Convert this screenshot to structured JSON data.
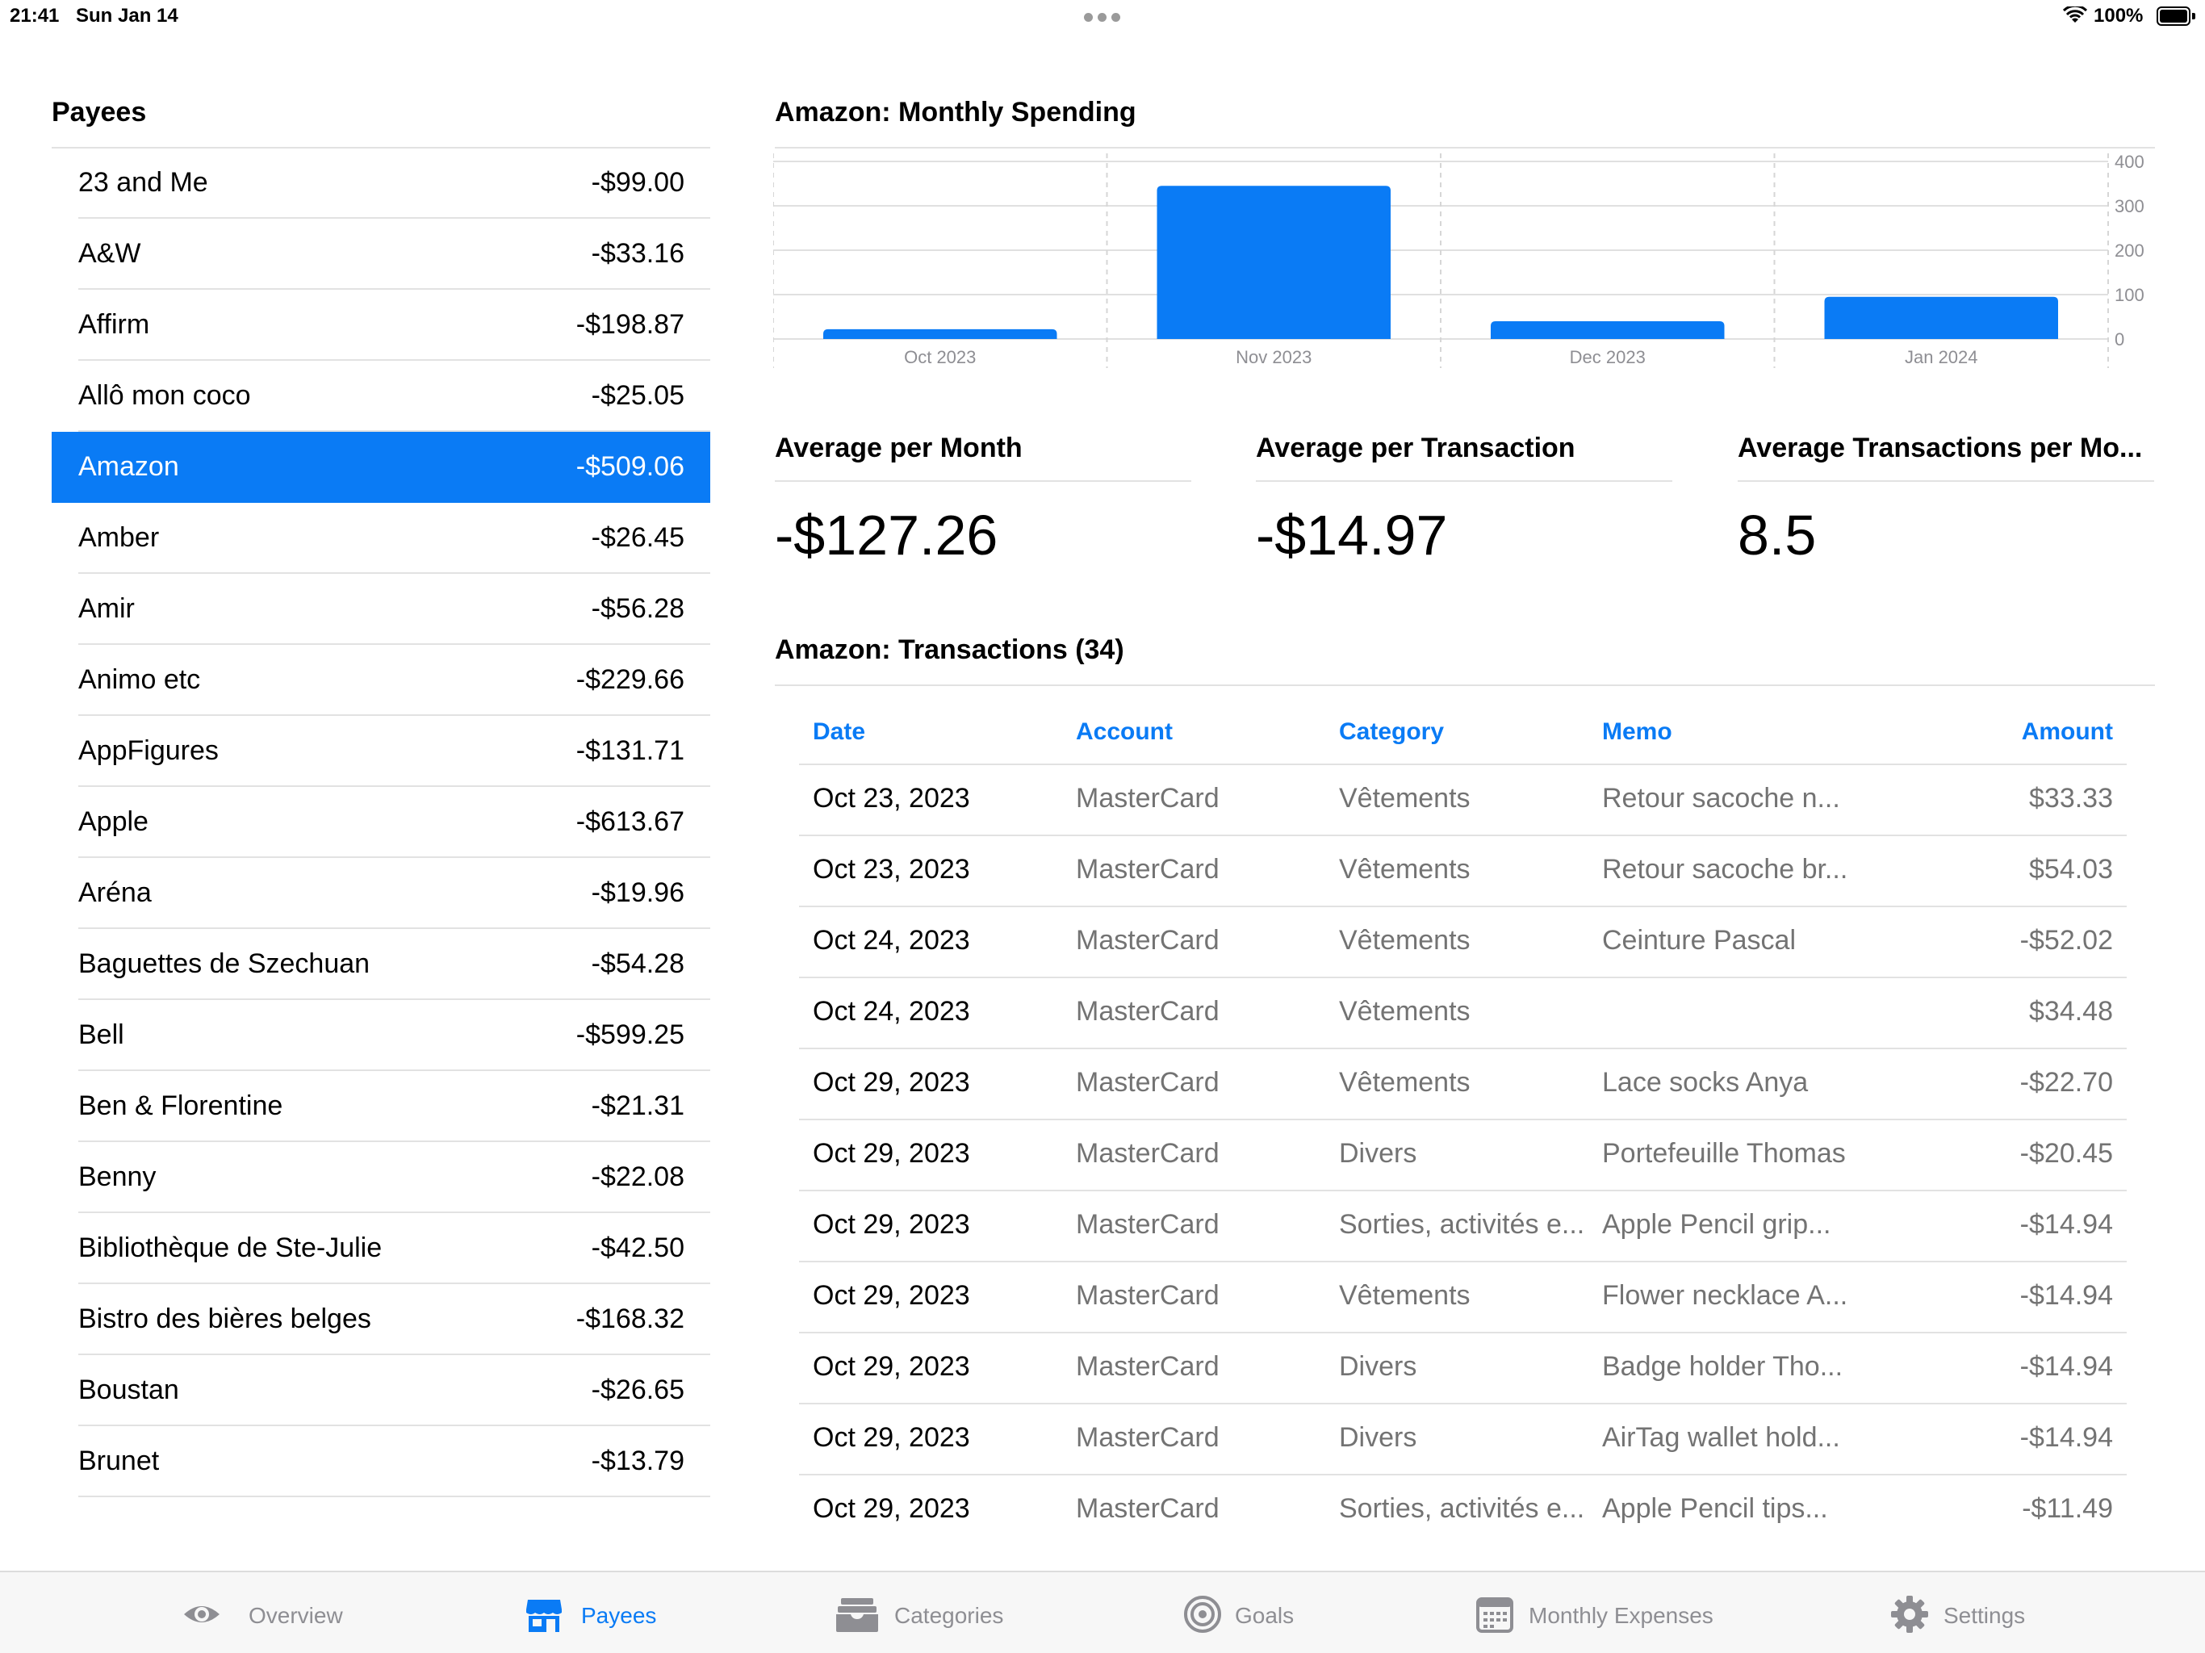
{
  "status_bar": {
    "time": "21:41",
    "date": "Sun Jan 14",
    "battery": "100%"
  },
  "payees": {
    "title": "Payees",
    "items": [
      {
        "name": "23 and Me",
        "amount": "-$99.00"
      },
      {
        "name": "A&W",
        "amount": "-$33.16"
      },
      {
        "name": "Affirm",
        "amount": "-$198.87"
      },
      {
        "name": "Allô mon coco",
        "amount": "-$25.05"
      },
      {
        "name": "Amazon",
        "amount": "-$509.06",
        "selected": true
      },
      {
        "name": "Amber",
        "amount": "-$26.45"
      },
      {
        "name": "Amir",
        "amount": "-$56.28"
      },
      {
        "name": "Animo etc",
        "amount": "-$229.66"
      },
      {
        "name": "AppFigures",
        "amount": "-$131.71"
      },
      {
        "name": "Apple",
        "amount": "-$613.67"
      },
      {
        "name": "Aréna",
        "amount": "-$19.96"
      },
      {
        "name": "Baguettes de Szechuan",
        "amount": "-$54.28"
      },
      {
        "name": "Bell",
        "amount": "-$599.25"
      },
      {
        "name": "Ben & Florentine",
        "amount": "-$21.31"
      },
      {
        "name": "Benny",
        "amount": "-$22.08"
      },
      {
        "name": "Bibliothèque de Ste-Julie",
        "amount": "-$42.50"
      },
      {
        "name": "Bistro des bières belges",
        "amount": "-$168.32"
      },
      {
        "name": "Boustan",
        "amount": "-$26.65"
      },
      {
        "name": "Brunet",
        "amount": "-$13.79"
      }
    ]
  },
  "chart_title": "Amazon: Monthly Spending",
  "chart_data": {
    "type": "bar",
    "categories": [
      "Oct 2023",
      "Nov 2023",
      "Dec 2023",
      "Jan 2024"
    ],
    "values": [
      22,
      345,
      40,
      95
    ],
    "ylim": [
      0,
      400
    ],
    "yticks": [
      "0",
      "100",
      "200",
      "300",
      "400"
    ],
    "grid": true,
    "bar_color": "#0a7bf5"
  },
  "stats": {
    "avg_month": {
      "label": "Average per Month",
      "value": "-$127.26"
    },
    "avg_transaction": {
      "label": "Average per Transaction",
      "value": "-$14.97"
    },
    "avg_tx_per_month": {
      "label": "Average Transactions per Mo...",
      "value": "8.5"
    }
  },
  "transactions": {
    "title": "Amazon: Transactions (34)",
    "columns": {
      "date": "Date",
      "account": "Account",
      "category": "Category",
      "memo": "Memo",
      "amount": "Amount"
    },
    "rows": [
      {
        "date": "Oct 23, 2023",
        "account": "MasterCard",
        "category": "Vêtements",
        "memo": "Retour sacoche n...",
        "amount": "$33.33"
      },
      {
        "date": "Oct 23, 2023",
        "account": "MasterCard",
        "category": "Vêtements",
        "memo": "Retour sacoche br...",
        "amount": "$54.03"
      },
      {
        "date": "Oct 24, 2023",
        "account": "MasterCard",
        "category": "Vêtements",
        "memo": "Ceinture Pascal",
        "amount": "-$52.02"
      },
      {
        "date": "Oct 24, 2023",
        "account": "MasterCard",
        "category": "Vêtements",
        "memo": "",
        "amount": "$34.48"
      },
      {
        "date": "Oct 29, 2023",
        "account": "MasterCard",
        "category": "Vêtements",
        "memo": "Lace socks Anya",
        "amount": "-$22.70"
      },
      {
        "date": "Oct 29, 2023",
        "account": "MasterCard",
        "category": "Divers",
        "memo": "Portefeuille Thomas",
        "amount": "-$20.45"
      },
      {
        "date": "Oct 29, 2023",
        "account": "MasterCard",
        "category": "Sorties, activités e...",
        "memo": "Apple Pencil grip...",
        "amount": "-$14.94"
      },
      {
        "date": "Oct 29, 2023",
        "account": "MasterCard",
        "category": "Vêtements",
        "memo": "Flower necklace A...",
        "amount": "-$14.94"
      },
      {
        "date": "Oct 29, 2023",
        "account": "MasterCard",
        "category": "Divers",
        "memo": "Badge holder Tho...",
        "amount": "-$14.94"
      },
      {
        "date": "Oct 29, 2023",
        "account": "MasterCard",
        "category": "Divers",
        "memo": "AirTag wallet hold...",
        "amount": "-$14.94"
      },
      {
        "date": "Oct 29, 2023",
        "account": "MasterCard",
        "category": "Sorties, activités e...",
        "memo": "Apple Pencil tips...",
        "amount": "-$11.49"
      }
    ]
  },
  "tabs": [
    {
      "label": "Overview",
      "icon": "eye-icon",
      "active": false
    },
    {
      "label": "Payees",
      "icon": "storefront-icon",
      "active": true
    },
    {
      "label": "Categories",
      "icon": "tray-icon",
      "active": false
    },
    {
      "label": "Goals",
      "icon": "target-icon",
      "active": false
    },
    {
      "label": "Monthly Expenses",
      "icon": "calendar-icon",
      "active": false
    },
    {
      "label": "Settings",
      "icon": "gear-icon",
      "active": false
    }
  ],
  "colors": {
    "accent": "#0a7bf5",
    "inactive": "#8e8e93",
    "secondary_text": "#737373"
  }
}
